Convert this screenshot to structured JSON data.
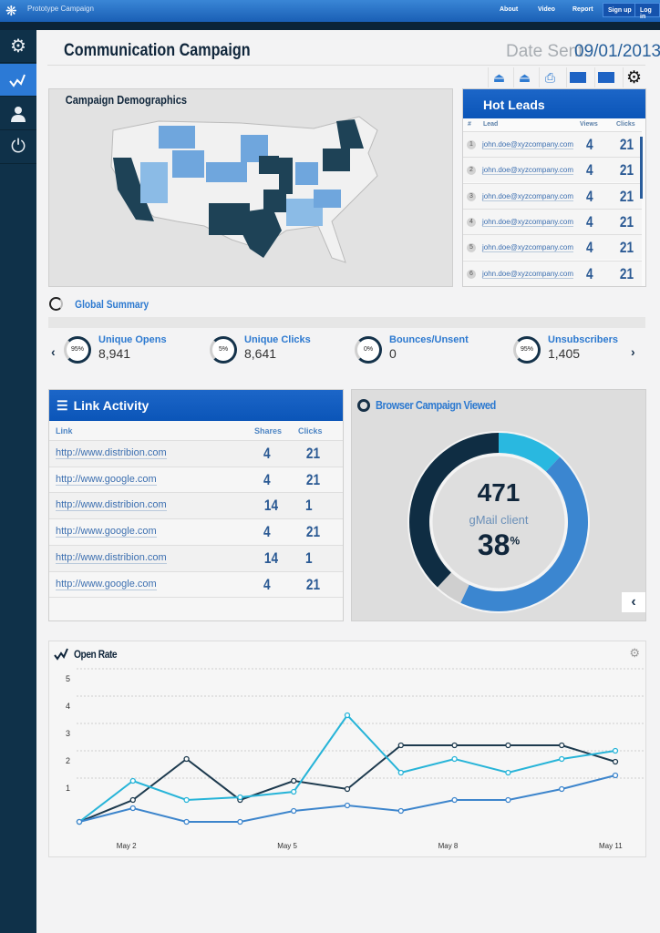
{
  "topbar": {
    "app_title": "Prototype Campaign",
    "nav": [
      "About",
      "Video",
      "Report"
    ],
    "signup": "Sign up",
    "login": "Log in"
  },
  "header": {
    "title": "Communication Campaign",
    "date_label": "Date Sent:",
    "date_value": "09/01/2013"
  },
  "toolbar": {
    "icons": [
      "upload-icon",
      "upload-icon",
      "print-icon",
      "comment-icon",
      "comment-icon",
      "gear-icon"
    ]
  },
  "demographics": {
    "title": "Campaign Demographics"
  },
  "hot_leads": {
    "title": "Hot Leads",
    "columns": [
      "#",
      "Lead",
      "Views",
      "Clicks"
    ],
    "rows": [
      {
        "n": "1",
        "lead": "john.doe@xyzcompany.com",
        "views": "4",
        "clicks": "21"
      },
      {
        "n": "2",
        "lead": "john.doe@xyzcompany.com",
        "views": "4",
        "clicks": "21"
      },
      {
        "n": "3",
        "lead": "john.doe@xyzcompany.com",
        "views": "4",
        "clicks": "21"
      },
      {
        "n": "4",
        "lead": "john.doe@xyzcompany.com",
        "views": "4",
        "clicks": "21"
      },
      {
        "n": "5",
        "lead": "john.doe@xyzcompany.com",
        "views": "4",
        "clicks": "21"
      },
      {
        "n": "6",
        "lead": "john.doe@xyzcompany.com",
        "views": "4",
        "clicks": "21"
      }
    ]
  },
  "global_summary": {
    "title": "Global Summary",
    "stats": [
      {
        "pct": "95%",
        "label": "Unique Opens",
        "value": "8,941"
      },
      {
        "pct": "5%",
        "label": "Unique Clicks",
        "value": "8,641"
      },
      {
        "pct": "0%",
        "label": "Bounces/Unsent",
        "value": "0"
      },
      {
        "pct": "95%",
        "label": "Unsubscribers",
        "value": "1,405"
      }
    ]
  },
  "link_activity": {
    "title": "Link Activity",
    "columns": [
      "Link",
      "Shares",
      "Clicks"
    ],
    "rows": [
      {
        "url": "http://www.distribion.com",
        "shares": "4",
        "clicks": "21"
      },
      {
        "url": "http://www.google.com",
        "shares": "4",
        "clicks": "21"
      },
      {
        "url": "http://www.distribion.com",
        "shares": "14",
        "clicks": "1"
      },
      {
        "url": "http://www.google.com",
        "shares": "4",
        "clicks": "21"
      },
      {
        "url": "http://www.distribion.com",
        "shares": "14",
        "clicks": "1"
      },
      {
        "url": "http://www.google.com",
        "shares": "4",
        "clicks": "21"
      }
    ]
  },
  "browser": {
    "title": "Browser Campaign Viewed",
    "count": "471",
    "client": "gMail client",
    "percent": "38",
    "percent_sign": "%",
    "segments": [
      {
        "value": 12,
        "color": "#29b8e0"
      },
      {
        "value": 45,
        "color": "#3b86d0"
      },
      {
        "value": 5,
        "color": "#cfcfcf"
      },
      {
        "value": 38,
        "color": "#0f2d43"
      }
    ]
  },
  "chart_data": {
    "type": "line",
    "title": "Open Rate",
    "x": [
      "May 1",
      "May 2",
      "May 3",
      "May 4",
      "May 5",
      "May 6",
      "May 7",
      "May 8",
      "May 9",
      "May 10",
      "May 11"
    ],
    "xtick_labels": [
      "May 2",
      "May 5",
      "May 8",
      "May 11"
    ],
    "yticks": [
      "1",
      "2",
      "3",
      "4",
      "5"
    ],
    "ylim": [
      0,
      5.6
    ],
    "series": [
      {
        "name": "dark",
        "color": "#1d3a4e",
        "values": [
          0.2,
          1.0,
          2.5,
          1.0,
          1.7,
          1.4,
          3.0,
          3.0,
          3.0,
          3.0,
          2.4
        ]
      },
      {
        "name": "cyan",
        "color": "#27b4d8",
        "values": [
          0.2,
          1.7,
          1.0,
          1.1,
          1.3,
          4.1,
          2.0,
          2.5,
          2.0,
          2.5,
          2.8
        ]
      },
      {
        "name": "blue",
        "color": "#3d85cc",
        "values": [
          0.2,
          0.7,
          0.2,
          0.2,
          0.6,
          0.8,
          0.6,
          1.0,
          1.0,
          1.4,
          1.9
        ]
      }
    ]
  }
}
